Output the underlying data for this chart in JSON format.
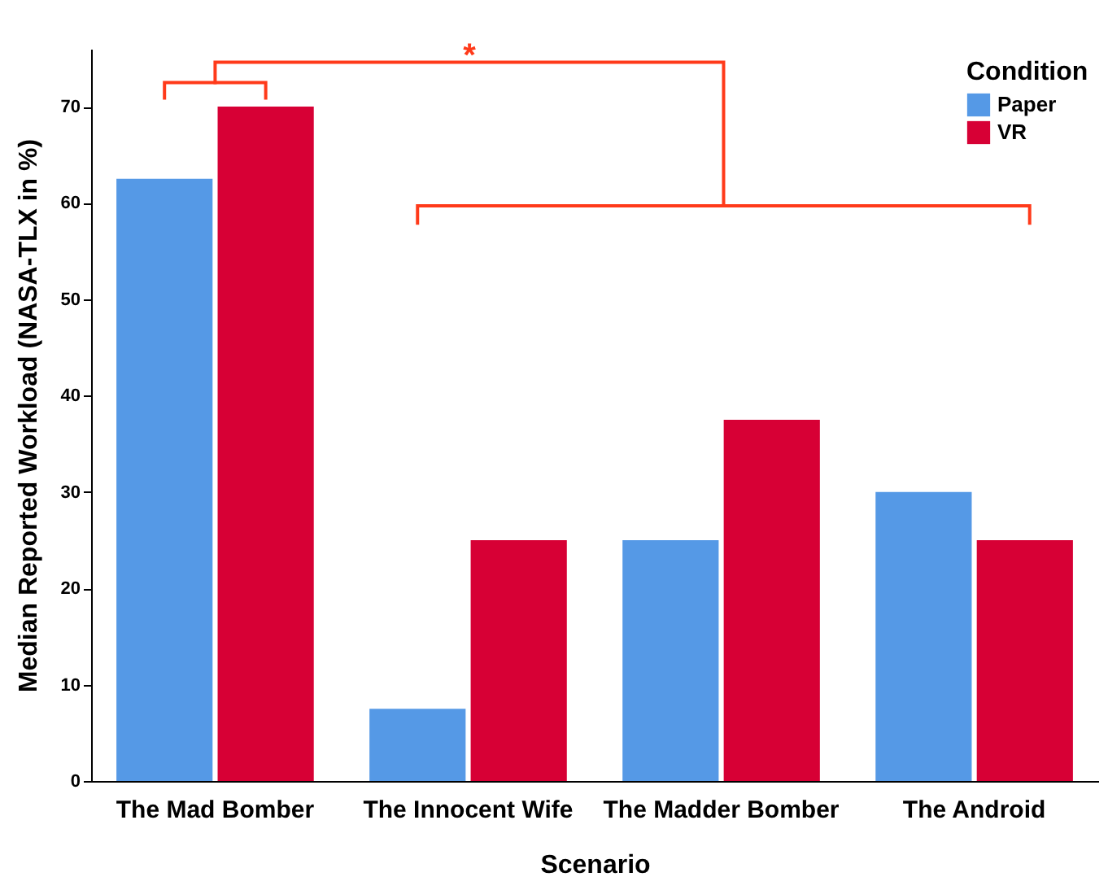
{
  "chart_data": {
    "type": "bar",
    "xlabel": "Scenario",
    "ylabel": "Median Reported Workload (NASA-TLX in %)",
    "legend_title": "Condition",
    "categories": [
      "The Mad Bomber",
      "The Innocent Wife",
      "The Madder Bomber",
      "The Android"
    ],
    "series": [
      {
        "name": "Paper",
        "color": "#5599e6",
        "values": [
          62.5,
          7.5,
          25,
          30
        ]
      },
      {
        "name": "VR",
        "color": "#d70035",
        "values": [
          70,
          25,
          37.5,
          25
        ]
      }
    ],
    "ylim": [
      0,
      76
    ],
    "yticks": [
      0,
      10,
      20,
      30,
      40,
      50,
      60,
      70
    ],
    "grid": false,
    "legend": "top right",
    "annotations": [
      "*"
    ]
  }
}
